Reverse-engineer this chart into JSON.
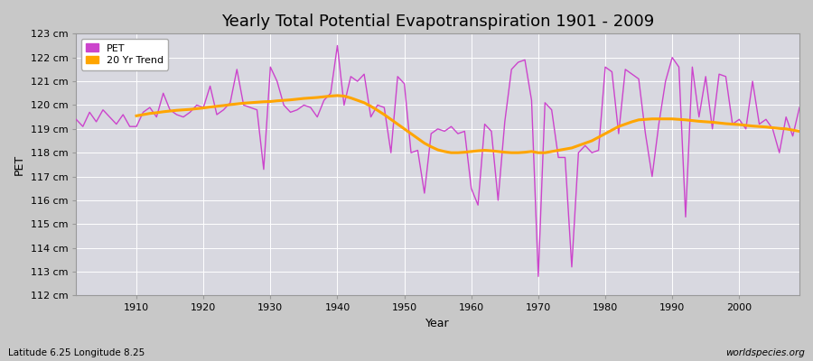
{
  "title": "Yearly Total Potential Evapotranspiration 1901 - 2009",
  "xlabel": "Year",
  "ylabel": "PET",
  "subtitle_left": "Latitude 6.25 Longitude 8.25",
  "subtitle_right": "worldspecies.org",
  "pet_color": "#CC44CC",
  "trend_color": "#FFA500",
  "fig_facecolor": "#C8C8C8",
  "plot_bg_color": "#D8D8E0",
  "ylim": [
    112,
    123
  ],
  "ytick_labels": [
    "112 cm",
    "113 cm",
    "114 cm",
    "115 cm",
    "116 cm",
    "117 cm",
    "118 cm",
    "119 cm",
    "120 cm",
    "121 cm",
    "122 cm",
    "123 cm"
  ],
  "ytick_values": [
    112,
    113,
    114,
    115,
    116,
    117,
    118,
    119,
    120,
    121,
    122,
    123
  ],
  "years": [
    1901,
    1902,
    1903,
    1904,
    1905,
    1906,
    1907,
    1908,
    1909,
    1910,
    1911,
    1912,
    1913,
    1914,
    1915,
    1916,
    1917,
    1918,
    1919,
    1920,
    1921,
    1922,
    1923,
    1924,
    1925,
    1926,
    1927,
    1928,
    1929,
    1930,
    1931,
    1932,
    1933,
    1934,
    1935,
    1936,
    1937,
    1938,
    1939,
    1940,
    1941,
    1942,
    1943,
    1944,
    1945,
    1946,
    1947,
    1948,
    1949,
    1950,
    1951,
    1952,
    1953,
    1954,
    1955,
    1956,
    1957,
    1958,
    1959,
    1960,
    1961,
    1962,
    1963,
    1964,
    1965,
    1966,
    1967,
    1968,
    1969,
    1970,
    1971,
    1972,
    1973,
    1974,
    1975,
    1976,
    1977,
    1978,
    1979,
    1980,
    1981,
    1982,
    1983,
    1984,
    1985,
    1986,
    1987,
    1988,
    1989,
    1990,
    1991,
    1992,
    1993,
    1994,
    1995,
    1996,
    1997,
    1998,
    1999,
    2000,
    2001,
    2002,
    2003,
    2004,
    2005,
    2006,
    2007,
    2008,
    2009
  ],
  "pet_values": [
    119.4,
    119.1,
    119.7,
    119.3,
    119.8,
    119.5,
    119.2,
    119.6,
    119.1,
    119.1,
    119.7,
    119.9,
    119.5,
    120.5,
    119.8,
    119.6,
    119.5,
    119.7,
    120.0,
    119.9,
    120.8,
    119.6,
    119.8,
    120.1,
    121.5,
    120.0,
    119.9,
    119.8,
    117.3,
    121.6,
    121.0,
    120.0,
    119.7,
    119.8,
    120.0,
    119.9,
    119.5,
    120.2,
    120.5,
    122.5,
    120.0,
    121.2,
    121.0,
    121.3,
    119.5,
    120.0,
    119.9,
    118.0,
    121.2,
    120.9,
    118.0,
    118.1,
    116.3,
    118.8,
    119.0,
    118.9,
    119.1,
    118.8,
    118.9,
    116.5,
    115.8,
    119.2,
    118.9,
    116.0,
    119.3,
    121.5,
    121.8,
    121.9,
    120.2,
    112.8,
    120.1,
    119.8,
    117.8,
    117.8,
    113.2,
    118.0,
    118.3,
    118.0,
    118.1,
    121.6,
    121.4,
    118.8,
    121.5,
    121.3,
    121.1,
    118.8,
    117.0,
    119.2,
    121.0,
    122.0,
    121.6,
    115.3,
    121.6,
    119.5,
    121.2,
    119.0,
    121.3,
    121.2,
    119.2,
    119.4,
    119.0,
    121.0,
    119.2,
    119.4,
    119.0,
    118.0,
    119.5,
    118.7,
    119.9
  ],
  "trend_values": [
    null,
    null,
    null,
    null,
    null,
    null,
    null,
    null,
    null,
    119.55,
    119.6,
    119.65,
    119.68,
    119.72,
    119.75,
    119.78,
    119.8,
    119.82,
    119.85,
    119.88,
    119.92,
    119.95,
    119.98,
    120.02,
    120.05,
    120.08,
    120.1,
    120.12,
    120.14,
    120.15,
    120.18,
    120.2,
    120.22,
    120.25,
    120.28,
    120.3,
    120.32,
    120.35,
    120.38,
    120.4,
    120.38,
    120.3,
    120.2,
    120.1,
    119.95,
    119.78,
    119.6,
    119.4,
    119.2,
    119.0,
    118.8,
    118.6,
    118.4,
    118.25,
    118.12,
    118.05,
    118.0,
    118.0,
    118.02,
    118.05,
    118.08,
    118.1,
    118.08,
    118.05,
    118.02,
    118.0,
    118.0,
    118.02,
    118.05,
    118.0,
    118.0,
    118.05,
    118.1,
    118.15,
    118.2,
    118.3,
    118.4,
    118.5,
    118.65,
    118.8,
    118.95,
    119.1,
    119.2,
    119.3,
    119.38,
    119.4,
    119.42,
    119.42,
    119.42,
    119.42,
    119.4,
    119.38,
    119.35,
    119.32,
    119.3,
    119.28,
    119.25,
    119.22,
    119.2,
    119.18,
    119.15,
    119.12,
    119.1,
    119.08,
    119.05,
    119.02,
    119.0,
    118.95,
    118.9
  ],
  "xtick_years": [
    1910,
    1920,
    1930,
    1940,
    1950,
    1960,
    1970,
    1980,
    1990,
    2000
  ],
  "legend_pet_label": "PET",
  "legend_trend_label": "20 Yr Trend",
  "title_fontsize": 13,
  "axis_label_fontsize": 9,
  "tick_fontsize": 8
}
